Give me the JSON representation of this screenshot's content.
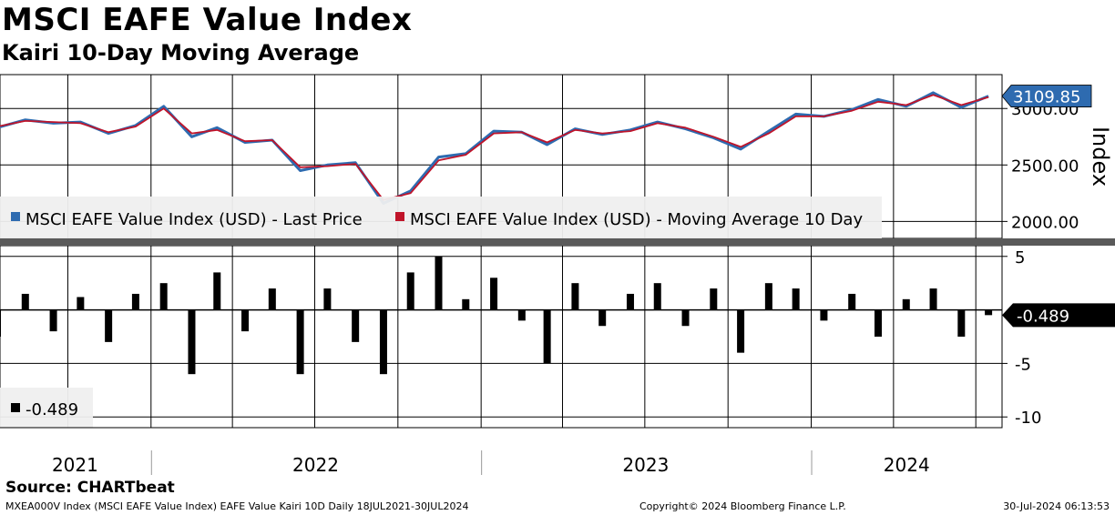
{
  "title": "MSCI EAFE Value Index",
  "subtitle": "Kairi 10-Day Moving Average",
  "source": "Source: CHARTbeat",
  "footer": {
    "left": "MXEA000V Index (MSCI EAFE Value Index) EAFE Value Kairi 10D  Daily 18JUL2021-30JUL2024",
    "center": "Copyright© 2024 Bloomberg Finance L.P.",
    "right": "30-Jul-2024 06:13:53"
  },
  "colors": {
    "price": "#2e6bb0",
    "moving_average": "#c0142a",
    "last_value_tag": "#2e6bb0",
    "kairi_bars": "#000000",
    "kairi_tag": "#000000"
  },
  "chart_data": [
    {
      "type": "line",
      "title": "MSCI EAFE Value Index",
      "ylabel": "Index",
      "ylim": [
        1850,
        3300
      ],
      "y_ticks": [
        "2000.00",
        "2500.00",
        "3000.00"
      ],
      "grid": true,
      "legend_placement": "bottom-left",
      "last_value_label": "3109.85",
      "x_labels": [
        "2021",
        "2022",
        "2023",
        "2024"
      ],
      "x": [
        "2021-07",
        "2021-08",
        "2021-09",
        "2021-10",
        "2021-11",
        "2021-12",
        "2022-01",
        "2022-02",
        "2022-03",
        "2022-04",
        "2022-05",
        "2022-06",
        "2022-07",
        "2022-08",
        "2022-09",
        "2022-10",
        "2022-11",
        "2022-12",
        "2023-01",
        "2023-02",
        "2023-03",
        "2023-04",
        "2023-05",
        "2023-06",
        "2023-07",
        "2023-08",
        "2023-09",
        "2023-10",
        "2023-11",
        "2023-12",
        "2024-01",
        "2024-02",
        "2024-03",
        "2024-04",
        "2024-05",
        "2024-06",
        "2024-07"
      ],
      "series": [
        {
          "name": "MSCI EAFE Value Index (USD) - Last Price",
          "values": [
            2830,
            2900,
            2870,
            2880,
            2780,
            2850,
            3020,
            2750,
            2830,
            2700,
            2720,
            2450,
            2500,
            2520,
            2160,
            2270,
            2570,
            2600,
            2800,
            2790,
            2680,
            2820,
            2770,
            2810,
            2880,
            2820,
            2740,
            2640,
            2800,
            2950,
            2930,
            2990,
            3080,
            3020,
            3140,
            3010,
            3110
          ]
        },
        {
          "name": "MSCI EAFE Value Index (USD) - Moving Average 10 Day",
          "values": [
            2840,
            2890,
            2880,
            2870,
            2790,
            2840,
            3000,
            2780,
            2810,
            2710,
            2720,
            2480,
            2490,
            2510,
            2190,
            2250,
            2540,
            2590,
            2780,
            2790,
            2700,
            2810,
            2780,
            2800,
            2870,
            2830,
            2750,
            2660,
            2780,
            2930,
            2930,
            2980,
            3060,
            3030,
            3120,
            3030,
            3100
          ]
        }
      ]
    },
    {
      "type": "bar",
      "title": "EAFE Value Kairi 10D",
      "ylim": [
        -11,
        6
      ],
      "y_ticks": [
        "5",
        "-5",
        "-10"
      ],
      "legend": "-0.489",
      "last_value_label": "-0.489",
      "x": [
        "2021-07",
        "2021-08",
        "2021-09",
        "2021-10",
        "2021-11",
        "2021-12",
        "2022-01",
        "2022-02",
        "2022-03",
        "2022-04",
        "2022-05",
        "2022-06",
        "2022-07",
        "2022-08",
        "2022-09",
        "2022-10",
        "2022-11",
        "2022-12",
        "2023-01",
        "2023-02",
        "2023-03",
        "2023-04",
        "2023-05",
        "2023-06",
        "2023-07",
        "2023-08",
        "2023-09",
        "2023-10",
        "2023-11",
        "2023-12",
        "2024-01",
        "2024-02",
        "2024-03",
        "2024-04",
        "2024-05",
        "2024-06",
        "2024-07"
      ],
      "values": [
        -2.5,
        1.5,
        -2.0,
        1.2,
        -3.0,
        1.5,
        2.5,
        -6.0,
        3.5,
        -2.0,
        2.0,
        -6.0,
        2.0,
        -3.0,
        -6.0,
        3.5,
        5.0,
        1.0,
        3.0,
        -1.0,
        -5.0,
        2.5,
        -1.5,
        1.5,
        2.5,
        -1.5,
        2.0,
        -4.0,
        2.5,
        2.0,
        -1.0,
        1.5,
        -2.5,
        1.0,
        2.0,
        -2.5,
        -0.489
      ]
    }
  ]
}
